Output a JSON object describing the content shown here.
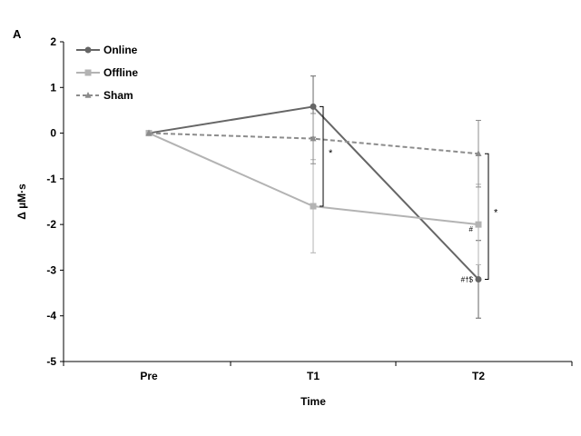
{
  "chart_data": {
    "type": "line",
    "panel_label": "A",
    "categories": [
      "Pre",
      "T1",
      "T2"
    ],
    "xlabel": "Time",
    "ylabel": "Δ µM·s",
    "ylim": [
      -5,
      2
    ],
    "yticks": [
      -5,
      -4,
      -3,
      -2,
      -1,
      0,
      1,
      2
    ],
    "grid": false,
    "legend_position": "top-left",
    "series": [
      {
        "name": "Online",
        "values": [
          0,
          0.58,
          -3.2
        ],
        "err": [
          0,
          0.67,
          0.85
        ],
        "color": "#666666",
        "marker": "circle",
        "dash": false
      },
      {
        "name": "Offline",
        "values": [
          0,
          -1.6,
          -2.0
        ],
        "err": [
          0,
          1.02,
          0.88
        ],
        "color": "#b3b3b3",
        "marker": "square",
        "dash": false
      },
      {
        "name": "Sham",
        "values": [
          0,
          -0.12,
          -0.45
        ],
        "err": [
          0,
          0.55,
          0.73
        ],
        "color": "#8c8c8c",
        "marker": "triangle",
        "dash": true
      }
    ],
    "annotations": [
      {
        "text": "*",
        "category": "T1",
        "y": -0.45
      },
      {
        "text": "*",
        "category": "T2",
        "y": -1.75
      },
      {
        "text": "#",
        "category": "T2",
        "y": -2.1
      },
      {
        "text": "#†$",
        "category": "T2",
        "y": -3.2
      }
    ],
    "brackets": [
      {
        "category": "T1",
        "from": 0.58,
        "to": -1.6
      },
      {
        "category": "T2",
        "from": -0.45,
        "to": -3.2
      }
    ]
  }
}
